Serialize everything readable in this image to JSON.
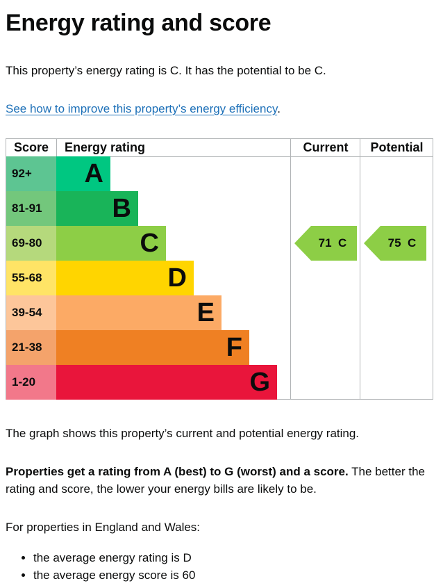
{
  "page": {
    "title": "Energy rating and score",
    "intro": "This property’s energy rating is C. It has the potential to be C.",
    "improve_link": "See how to improve this property’s energy efficiency",
    "improve_link_suffix": ".",
    "graph_caption": "The graph shows this property’s current and potential energy rating.",
    "rating_bold": "Properties get a rating from A (best) to G (worst) and a score.",
    "rating_rest": " The better the rating and score, the lower your energy bills are likely to be.",
    "england_wales": "For properties in England and Wales:",
    "bullets": [
      "the average energy rating is D",
      "the average energy score is 60"
    ]
  },
  "chart_data": {
    "type": "table",
    "headers": {
      "score": "Score",
      "rating": "Energy rating",
      "current": "Current",
      "potential": "Potential"
    },
    "bands": [
      {
        "range": "92+",
        "letter": "A",
        "score_color": "#5dc592",
        "bar_color": "#00c781"
      },
      {
        "range": "81-91",
        "letter": "B",
        "score_color": "#73c77c",
        "bar_color": "#19b459"
      },
      {
        "range": "69-80",
        "letter": "C",
        "score_color": "#b5d97c",
        "bar_color": "#8dce46"
      },
      {
        "range": "55-68",
        "letter": "D",
        "score_color": "#ffe466",
        "bar_color": "#ffd500"
      },
      {
        "range": "39-54",
        "letter": "E",
        "score_color": "#fdc69a",
        "bar_color": "#fcaa65"
      },
      {
        "range": "21-38",
        "letter": "F",
        "score_color": "#f4a36b",
        "bar_color": "#ef8023"
      },
      {
        "range": "1-20",
        "letter": "G",
        "score_color": "#f2788a",
        "bar_color": "#e9153b"
      }
    ],
    "current": {
      "score": 71,
      "letter": "C",
      "label": "71  C",
      "color": "#8dce46"
    },
    "potential": {
      "score": 75,
      "letter": "C",
      "label": "75  C",
      "color": "#8dce46"
    }
  }
}
